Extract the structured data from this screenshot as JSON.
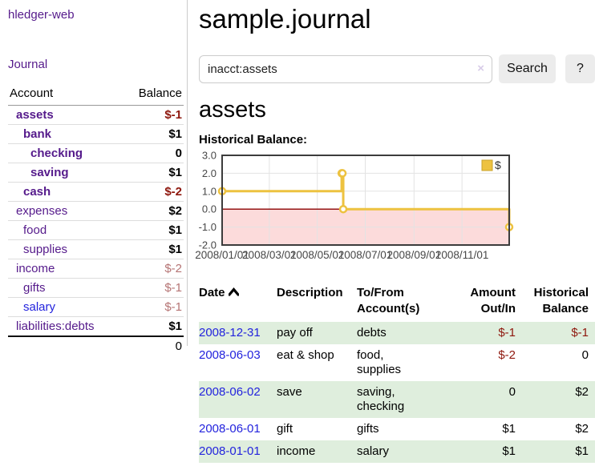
{
  "app": {
    "brand": "hledger-web"
  },
  "sidebar": {
    "journal_label": "Journal",
    "table": {
      "account_header": "Account",
      "balance_header": "Balance",
      "accounts": [
        {
          "name": "assets",
          "depth": 1,
          "bold": true,
          "blue": false,
          "balance": "$-1",
          "balance_style": "neg"
        },
        {
          "name": "bank",
          "depth": 2,
          "bold": true,
          "blue": false,
          "balance": "$1",
          "balance_style": ""
        },
        {
          "name": "checking",
          "depth": 3,
          "bold": true,
          "blue": false,
          "balance": "0",
          "balance_style": ""
        },
        {
          "name": "saving",
          "depth": 3,
          "bold": true,
          "blue": false,
          "balance": "$1",
          "balance_style": ""
        },
        {
          "name": "cash",
          "depth": 2,
          "bold": true,
          "blue": false,
          "balance": "$-2",
          "balance_style": "neg"
        },
        {
          "name": "expenses",
          "depth": 1,
          "bold": false,
          "blue": false,
          "balance": "$2",
          "balance_style": ""
        },
        {
          "name": "food",
          "depth": 2,
          "bold": false,
          "blue": false,
          "balance": "$1",
          "balance_style": ""
        },
        {
          "name": "supplies",
          "depth": 2,
          "bold": false,
          "blue": false,
          "balance": "$1",
          "balance_style": ""
        },
        {
          "name": "income",
          "depth": 1,
          "bold": false,
          "blue": false,
          "balance": "$-2",
          "balance_style": "muted"
        },
        {
          "name": "gifts",
          "depth": 2,
          "bold": false,
          "blue": false,
          "balance": "$-1",
          "balance_style": "muted"
        },
        {
          "name": "salary",
          "depth": 2,
          "bold": false,
          "blue": true,
          "balance": "$-1",
          "balance_style": "muted"
        },
        {
          "name": "liabilities:debts",
          "depth": 1,
          "bold": false,
          "blue": false,
          "balance": "$1",
          "balance_style": ""
        }
      ],
      "total": "0"
    }
  },
  "header": {
    "title": "sample.journal"
  },
  "search": {
    "value": "inacct:assets",
    "clear_icon": "×",
    "button_label": "Search",
    "help_label": "?"
  },
  "account_page": {
    "heading": "assets"
  },
  "chart_data": {
    "type": "line",
    "title": "Historical Balance:",
    "step": true,
    "legend_position": "top-right",
    "grid": true,
    "series": [
      {
        "name": "$",
        "color": "#edc240",
        "points": [
          {
            "x": "2008-01-01",
            "y": 1
          },
          {
            "x": "2008-06-01",
            "y": 2
          },
          {
            "x": "2008-06-02",
            "y": 2
          },
          {
            "x": "2008-06-03",
            "y": 0
          },
          {
            "x": "2008-12-31",
            "y": -1
          }
        ]
      }
    ],
    "xrange": [
      "2008-01-01",
      "2008-12-31"
    ],
    "ylim": [
      -2,
      3
    ],
    "yticks": [
      {
        "v": 3,
        "label": "3.0"
      },
      {
        "v": 2,
        "label": "2.0"
      },
      {
        "v": 1,
        "label": "1.0"
      },
      {
        "v": 0,
        "label": "0.0"
      },
      {
        "v": -1,
        "label": "-1.0"
      },
      {
        "v": -2,
        "label": "-2.0"
      }
    ],
    "xticks": [
      {
        "date": "2008-01-01",
        "label": "2008/01/01"
      },
      {
        "date": "2008-03-01",
        "label": "2008/03/01"
      },
      {
        "date": "2008-05-01",
        "label": "2008/05/01"
      },
      {
        "date": "2008-07-01",
        "label": "2008/07/01"
      },
      {
        "date": "2008-09-01",
        "label": "2008/09/01"
      },
      {
        "date": "2008-11-01",
        "label": "2008/11/01"
      }
    ],
    "negative_region_color": "#fcdbdb",
    "zero_line_color": "#8b0000",
    "grid_color": "#e3e3e3",
    "border_color": "#3c3c3c"
  },
  "register": {
    "headers": {
      "date": "Date",
      "description": "Description",
      "accounts": "To/From Account(s)",
      "amount": "Amount Out/In",
      "balance": "Historical Balance"
    },
    "rows": [
      {
        "date": "2008-12-31",
        "description": "pay off",
        "accounts": "debts",
        "amount": "$-1",
        "amount_style": "neg",
        "balance": "$-1",
        "balance_style": "neg"
      },
      {
        "date": "2008-06-03",
        "description": "eat & shop",
        "accounts": "food, supplies",
        "amount": "$-2",
        "amount_style": "neg",
        "balance": "0",
        "balance_style": ""
      },
      {
        "date": "2008-06-02",
        "description": "save",
        "accounts": "saving, checking",
        "amount": "0",
        "amount_style": "",
        "balance": "$2",
        "balance_style": ""
      },
      {
        "date": "2008-06-01",
        "description": "gift",
        "accounts": "gifts",
        "amount": "$1",
        "amount_style": "",
        "balance": "$2",
        "balance_style": ""
      },
      {
        "date": "2008-01-01",
        "description": "income",
        "accounts": "salary",
        "amount": "$1",
        "amount_style": "",
        "balance": "$1",
        "balance_style": ""
      }
    ]
  },
  "colors": {
    "link_purple": "#551a8b",
    "link_blue": "#2323dd",
    "negative": "#8e170d",
    "negative_muted": "#b57474",
    "row_green": "#dfeedd",
    "series_gold": "#edc240"
  }
}
